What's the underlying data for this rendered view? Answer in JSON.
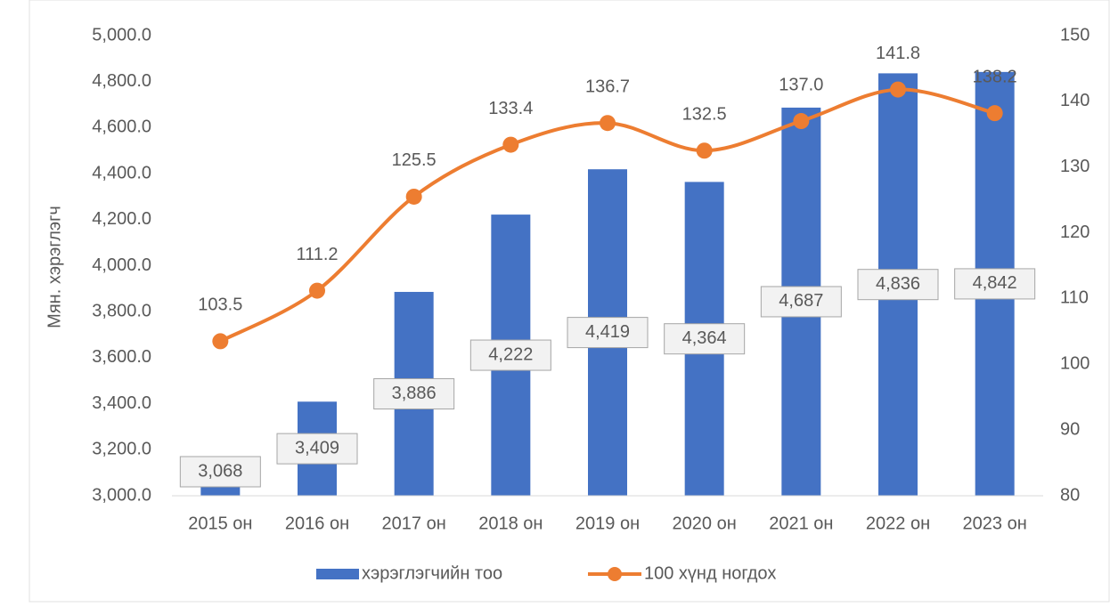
{
  "chart_data": {
    "type": "bar_line",
    "y_label": "Мян. хэрэглэгч",
    "categories": [
      "2015 он",
      "2016 он",
      "2017 он",
      "2018 он",
      "2019 он",
      "2020 он",
      "2021 он",
      "2022 он",
      "2023 он"
    ],
    "series": [
      {
        "name": "хэрэглэгчийн тоо",
        "type": "bar",
        "color": "#4472c4",
        "values": [
          3068,
          3409,
          3886,
          4222,
          4419,
          4364,
          4687,
          4836,
          4842
        ],
        "value_labels": [
          "3,068",
          "3,409",
          "3,886",
          "4,222",
          "4,419",
          "4,364",
          "4,687",
          "4,836",
          "4,842"
        ]
      },
      {
        "name": "100 хүнд ногдох",
        "type": "line",
        "axis": "y2",
        "color": "#ed7d31",
        "values": [
          103.5,
          111.2,
          125.5,
          133.4,
          136.7,
          132.5,
          137.0,
          141.8,
          138.2
        ],
        "value_labels": [
          "103.5",
          "111.2",
          "125.5",
          "133.4",
          "136.7",
          "132.5",
          "137.0",
          "141.8",
          "138.2"
        ]
      }
    ],
    "ylim": [
      3000,
      5000
    ],
    "yticks": [
      {
        "value": 3000,
        "label": "3,000.0"
      },
      {
        "value": 3200,
        "label": "3,200.0"
      },
      {
        "value": 3400,
        "label": "3,400.0"
      },
      {
        "value": 3600,
        "label": "3,600.0"
      },
      {
        "value": 3800,
        "label": "3,800.0"
      },
      {
        "value": 4000,
        "label": "4,000.0"
      },
      {
        "value": 4200,
        "label": "4,200.0"
      },
      {
        "value": 4400,
        "label": "4,400.0"
      },
      {
        "value": 4600,
        "label": "4,600.0"
      },
      {
        "value": 4800,
        "label": "4,800.0"
      },
      {
        "value": 5000,
        "label": "5,000.0"
      }
    ],
    "y2lim": [
      80,
      150
    ],
    "y2ticks": [
      80,
      90,
      100,
      110,
      120,
      130,
      140,
      150
    ],
    "grid": false,
    "legend": "bottom"
  }
}
